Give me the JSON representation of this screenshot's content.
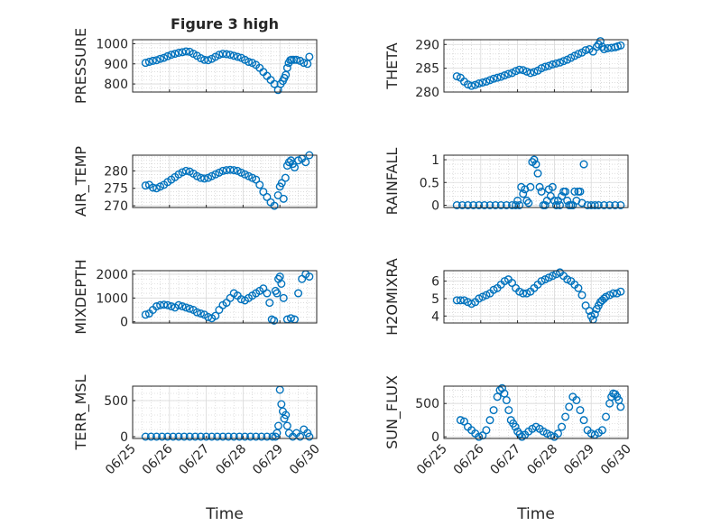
{
  "figure_title": "Figure 3 high",
  "colors": {
    "marker": "#0072BD",
    "axis": "#262626",
    "grid": "#d9d9d9",
    "minor_grid": "#c8c8c8"
  },
  "time_ticks": [
    "06/25",
    "06/26",
    "06/27",
    "06/28",
    "06/29",
    "06/30"
  ],
  "chart_data": [
    {
      "type": "scatter",
      "ylabel": "PRESSURE",
      "title": "Figure 3 high",
      "xlabel": "",
      "xlim": [
        0,
        5
      ],
      "ylim": [
        760,
        1020
      ],
      "yticks": [
        800,
        900,
        1000
      ],
      "x": [
        0.35,
        0.45,
        0.55,
        0.65,
        0.75,
        0.85,
        0.95,
        1.05,
        1.15,
        1.25,
        1.35,
        1.45,
        1.55,
        1.65,
        1.75,
        1.85,
        1.95,
        2.05,
        2.15,
        2.25,
        2.35,
        2.45,
        2.55,
        2.65,
        2.75,
        2.85,
        2.95,
        3.05,
        3.15,
        3.25,
        3.35,
        3.45,
        3.55,
        3.65,
        3.75,
        3.85,
        3.95,
        4.02,
        4.08,
        4.12,
        4.16,
        4.2,
        4.24,
        4.28,
        4.32,
        4.38,
        4.45,
        4.55,
        4.65,
        4.75,
        4.8
      ],
      "y": [
        905,
        910,
        915,
        918,
        925,
        930,
        938,
        945,
        950,
        955,
        958,
        962,
        960,
        950,
        940,
        928,
        920,
        918,
        925,
        935,
        945,
        950,
        948,
        945,
        940,
        935,
        930,
        920,
        910,
        905,
        895,
        880,
        860,
        840,
        820,
        800,
        770,
        800,
        815,
        830,
        845,
        880,
        905,
        918,
        920,
        920,
        920,
        915,
        905,
        900,
        935
      ]
    },
    {
      "type": "scatter",
      "ylabel": "THETA",
      "xlabel": "",
      "xlim": [
        0,
        5
      ],
      "ylim": [
        280,
        291
      ],
      "yticks": [
        280,
        285,
        290
      ],
      "x": [
        0.35,
        0.45,
        0.55,
        0.65,
        0.75,
        0.85,
        0.95,
        1.05,
        1.15,
        1.25,
        1.35,
        1.45,
        1.55,
        1.65,
        1.75,
        1.85,
        1.95,
        2.05,
        2.15,
        2.25,
        2.35,
        2.45,
        2.55,
        2.65,
        2.75,
        2.85,
        2.95,
        3.05,
        3.15,
        3.25,
        3.35,
        3.45,
        3.55,
        3.65,
        3.75,
        3.85,
        3.95,
        4.05,
        4.15,
        4.2,
        4.25,
        4.3,
        4.35,
        4.45,
        4.55,
        4.65,
        4.72,
        4.8
      ],
      "y": [
        283.3,
        283.0,
        282.2,
        281.6,
        281.3,
        281.5,
        281.8,
        282.0,
        282.2,
        282.5,
        282.8,
        283.0,
        283.2,
        283.5,
        283.8,
        284.0,
        284.4,
        284.7,
        284.6,
        284.3,
        284.0,
        284.2,
        284.5,
        285.0,
        285.3,
        285.5,
        285.8,
        286.0,
        286.2,
        286.5,
        286.8,
        287.2,
        287.6,
        288.0,
        288.3,
        288.8,
        289.0,
        288.5,
        289.5,
        290.0,
        290.7,
        289.5,
        289.0,
        289.2,
        289.3,
        289.4,
        289.6,
        289.8
      ]
    },
    {
      "type": "scatter",
      "ylabel": "AIR_TEMP",
      "xlabel": "",
      "xlim": [
        0,
        5
      ],
      "ylim": [
        269.5,
        284.5
      ],
      "yticks": [
        270,
        275,
        280
      ],
      "x": [
        0.35,
        0.45,
        0.55,
        0.65,
        0.75,
        0.85,
        0.95,
        1.05,
        1.15,
        1.25,
        1.35,
        1.45,
        1.55,
        1.65,
        1.75,
        1.85,
        1.95,
        2.05,
        2.15,
        2.25,
        2.35,
        2.45,
        2.55,
        2.65,
        2.75,
        2.85,
        2.95,
        3.05,
        3.15,
        3.25,
        3.35,
        3.45,
        3.55,
        3.65,
        3.75,
        3.85,
        3.95,
        4.0,
        4.05,
        4.1,
        4.15,
        4.2,
        4.25,
        4.3,
        4.35,
        4.4,
        4.5,
        4.6,
        4.7,
        4.8
      ],
      "y": [
        275.8,
        276.0,
        275.2,
        275.0,
        275.5,
        276.0,
        276.8,
        277.5,
        278.2,
        279.0,
        279.6,
        280.0,
        279.8,
        279.2,
        278.5,
        278.0,
        277.8,
        278.0,
        278.5,
        279.0,
        279.5,
        280.0,
        280.2,
        280.3,
        280.2,
        280.0,
        279.5,
        279.0,
        278.5,
        278.0,
        277.5,
        276.0,
        274.0,
        272.5,
        271.0,
        270.0,
        273.0,
        275.5,
        276.5,
        272.0,
        278.0,
        281.5,
        282.5,
        283.0,
        282.0,
        281.0,
        283.0,
        283.5,
        282.5,
        284.5
      ]
    },
    {
      "type": "scatter",
      "ylabel": "RAINFALL",
      "xlabel": "",
      "xlim": [
        0,
        5
      ],
      "ylim": [
        -0.05,
        1.1
      ],
      "yticks": [
        0,
        0.5,
        1
      ],
      "x": [
        0.35,
        0.5,
        0.65,
        0.8,
        0.95,
        1.1,
        1.25,
        1.4,
        1.55,
        1.7,
        1.85,
        1.95,
        2.0,
        2.05,
        2.1,
        2.15,
        2.2,
        2.25,
        2.3,
        2.35,
        2.4,
        2.45,
        2.5,
        2.55,
        2.6,
        2.65,
        2.7,
        2.75,
        2.8,
        2.85,
        2.9,
        2.95,
        3.0,
        3.05,
        3.1,
        3.15,
        3.2,
        3.25,
        3.3,
        3.35,
        3.4,
        3.45,
        3.5,
        3.55,
        3.6,
        3.65,
        3.7,
        3.75,
        3.8,
        3.9,
        4.0,
        4.1,
        4.2,
        4.35,
        4.5,
        4.65,
        4.8
      ],
      "y": [
        0,
        0,
        0,
        0,
        0,
        0,
        0,
        0,
        0,
        0,
        0,
        0,
        0.1,
        0,
        0.4,
        0.25,
        0.35,
        0.1,
        0.05,
        0.4,
        0.95,
        1.0,
        0.9,
        0.7,
        0.4,
        0.3,
        0,
        0,
        0.1,
        0.35,
        0.2,
        0.4,
        0.1,
        0,
        0.1,
        0,
        0.2,
        0.3,
        0.3,
        0.1,
        0,
        0,
        0,
        0.3,
        0.1,
        0.3,
        0.3,
        0.05,
        0.9,
        0,
        0,
        0,
        0,
        0,
        0,
        0,
        0
      ]
    },
    {
      "type": "scatter",
      "ylabel": "MIXDEPTH",
      "xlabel": "",
      "xlim": [
        0,
        5
      ],
      "ylim": [
        -50,
        2150
      ],
      "yticks": [
        0,
        1000,
        2000
      ],
      "x": [
        0.35,
        0.45,
        0.55,
        0.65,
        0.75,
        0.85,
        0.95,
        1.05,
        1.15,
        1.25,
        1.35,
        1.45,
        1.55,
        1.65,
        1.75,
        1.85,
        1.95,
        2.05,
        2.15,
        2.25,
        2.35,
        2.45,
        2.55,
        2.65,
        2.75,
        2.85,
        2.95,
        3.05,
        3.15,
        3.25,
        3.35,
        3.45,
        3.55,
        3.65,
        3.72,
        3.78,
        3.84,
        3.88,
        3.92,
        3.96,
        4.0,
        4.04,
        4.1,
        4.2,
        4.3,
        4.4,
        4.5,
        4.6,
        4.7,
        4.8
      ],
      "y": [
        300,
        350,
        500,
        650,
        700,
        720,
        700,
        650,
        600,
        700,
        650,
        600,
        550,
        500,
        400,
        350,
        300,
        200,
        150,
        250,
        500,
        700,
        800,
        1000,
        1200,
        1100,
        950,
        900,
        1000,
        1100,
        1200,
        1300,
        1400,
        1200,
        800,
        100,
        50,
        1300,
        1200,
        1800,
        1900,
        1600,
        1000,
        100,
        150,
        100,
        1200,
        1800,
        2000,
        1900
      ]
    },
    {
      "type": "scatter",
      "ylabel": "H2OMIXRA",
      "xlabel": "",
      "xlim": [
        0,
        5
      ],
      "ylim": [
        3.6,
        6.6
      ],
      "yticks": [
        4,
        5,
        6
      ],
      "x": [
        0.35,
        0.45,
        0.55,
        0.65,
        0.75,
        0.85,
        0.95,
        1.05,
        1.15,
        1.25,
        1.35,
        1.45,
        1.55,
        1.65,
        1.75,
        1.85,
        1.95,
        2.05,
        2.15,
        2.25,
        2.35,
        2.45,
        2.55,
        2.65,
        2.75,
        2.85,
        2.95,
        3.05,
        3.15,
        3.25,
        3.35,
        3.45,
        3.55,
        3.65,
        3.75,
        3.85,
        3.95,
        4.0,
        4.05,
        4.1,
        4.15,
        4.2,
        4.25,
        4.3,
        4.35,
        4.4,
        4.5,
        4.6,
        4.7,
        4.8
      ],
      "y": [
        4.9,
        4.9,
        4.9,
        4.8,
        4.7,
        4.8,
        5.0,
        5.1,
        5.2,
        5.3,
        5.5,
        5.6,
        5.8,
        6.0,
        6.1,
        5.9,
        5.6,
        5.4,
        5.3,
        5.3,
        5.4,
        5.6,
        5.8,
        6.0,
        6.1,
        6.2,
        6.3,
        6.4,
        6.5,
        6.3,
        6.1,
        6.0,
        5.8,
        5.6,
        5.2,
        4.6,
        4.3,
        4.0,
        3.8,
        4.1,
        4.4,
        4.6,
        4.8,
        4.9,
        5.0,
        5.1,
        5.2,
        5.3,
        5.3,
        5.4
      ]
    },
    {
      "type": "scatter",
      "ylabel": "TERR_MSL",
      "xlabel": "Time",
      "xlim": [
        0,
        5
      ],
      "ylim": [
        -25,
        700
      ],
      "yticks": [
        0,
        500
      ],
      "x": [
        0.35,
        0.5,
        0.65,
        0.8,
        0.95,
        1.1,
        1.25,
        1.4,
        1.55,
        1.7,
        1.85,
        2.0,
        2.15,
        2.3,
        2.45,
        2.6,
        2.75,
        2.9,
        3.05,
        3.2,
        3.35,
        3.5,
        3.65,
        3.8,
        3.88,
        3.92,
        3.96,
        4.0,
        4.04,
        4.08,
        4.12,
        4.16,
        4.2,
        4.25,
        4.35,
        4.45,
        4.55,
        4.65,
        4.75,
        4.8
      ],
      "y": [
        0,
        0,
        0,
        0,
        0,
        0,
        0,
        0,
        0,
        0,
        0,
        0,
        0,
        0,
        0,
        0,
        0,
        0,
        0,
        0,
        0,
        0,
        0,
        0,
        0,
        50,
        150,
        650,
        450,
        350,
        250,
        300,
        150,
        50,
        0,
        50,
        0,
        100,
        50,
        0
      ]
    },
    {
      "type": "scatter",
      "ylabel": "SUN_FLUX",
      "xlabel": "Time",
      "xlim": [
        0,
        5
      ],
      "ylim": [
        -25,
        760
      ],
      "yticks": [
        0,
        500
      ],
      "x": [
        0.45,
        0.55,
        0.65,
        0.75,
        0.85,
        0.95,
        1.05,
        1.15,
        1.25,
        1.35,
        1.45,
        1.52,
        1.58,
        1.64,
        1.7,
        1.76,
        1.82,
        1.88,
        1.94,
        2.0,
        2.06,
        2.12,
        2.2,
        2.3,
        2.4,
        2.5,
        2.6,
        2.7,
        2.8,
        2.9,
        3.0,
        3.1,
        3.2,
        3.3,
        3.4,
        3.5,
        3.6,
        3.7,
        3.8,
        3.9,
        4.0,
        4.1,
        4.2,
        4.3,
        4.4,
        4.5,
        4.55,
        4.6,
        4.65,
        4.7,
        4.75,
        4.8
      ],
      "y": [
        250,
        230,
        150,
        100,
        50,
        0,
        20,
        100,
        250,
        400,
        600,
        700,
        730,
        650,
        550,
        400,
        250,
        200,
        150,
        80,
        40,
        0,
        30,
        80,
        120,
        150,
        120,
        80,
        50,
        20,
        0,
        50,
        150,
        300,
        450,
        600,
        550,
        400,
        250,
        100,
        50,
        30,
        60,
        100,
        300,
        500,
        600,
        650,
        640,
        600,
        550,
        450
      ]
    }
  ]
}
